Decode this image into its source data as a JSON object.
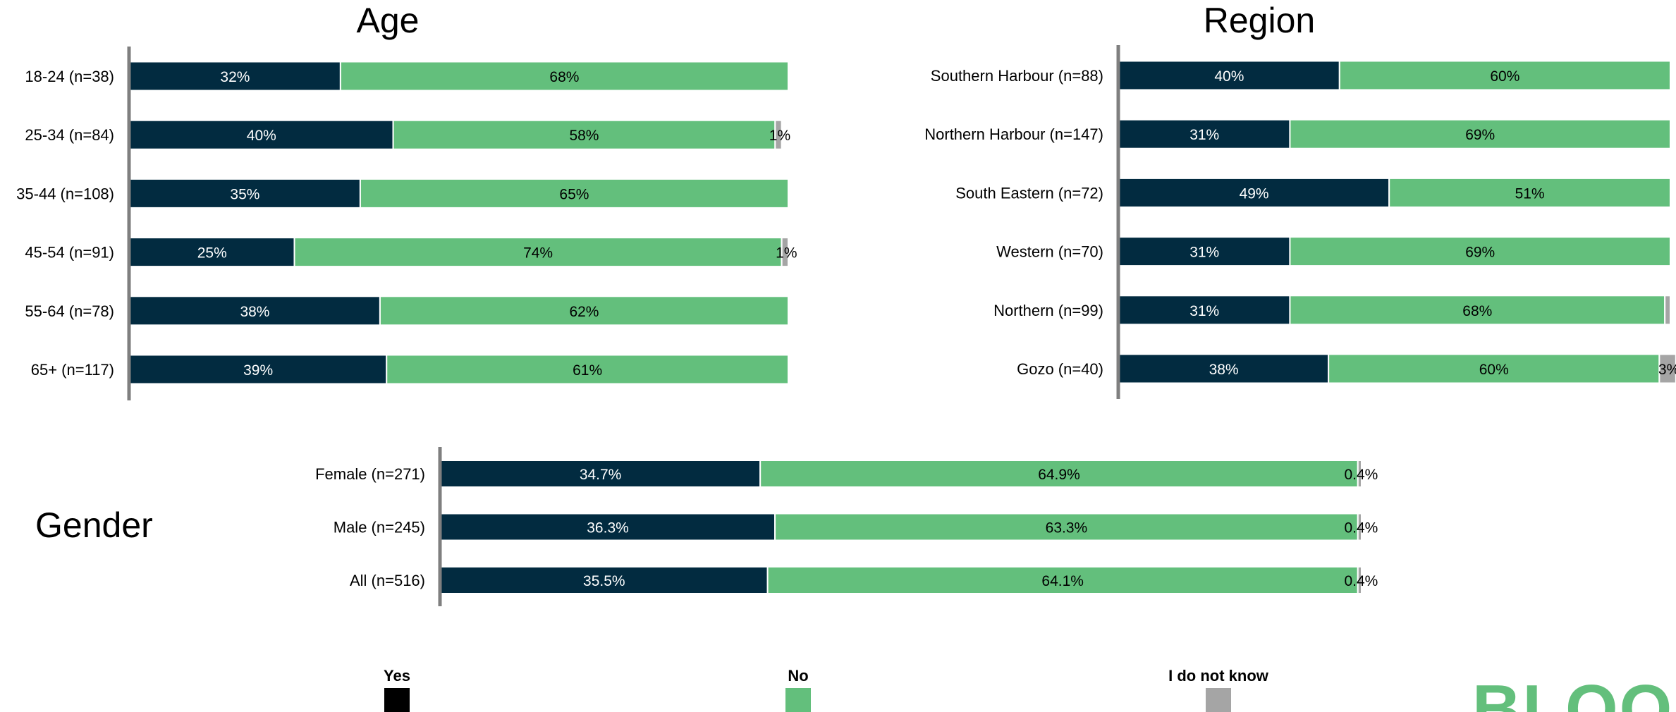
{
  "colors": {
    "yes": "#022b40",
    "no": "#63bf7c",
    "dont_know": "#a5a5a5",
    "axis": "#7f7f7f",
    "logo": "#63bf7c"
  },
  "chart_data": [
    {
      "type": "bar",
      "orientation": "horizontal",
      "stacked": true,
      "percent_stacked": true,
      "title": "Age",
      "categories": [
        "18-24   (n=38)",
        "25-34   (n=84)",
        "35-44   (n=108)",
        "45-54   (n=91)",
        "55-64   (n=78)",
        "65+   (n=117)"
      ],
      "series": [
        {
          "name": "Yes",
          "values": [
            32,
            40,
            35,
            25,
            38,
            39
          ],
          "labels": [
            "32%",
            "40%",
            "35%",
            "25%",
            "38%",
            "39%"
          ]
        },
        {
          "name": "No",
          "values": [
            68,
            58,
            65,
            74,
            62,
            61
          ],
          "labels": [
            "68%",
            "58%",
            "65%",
            "74%",
            "62%",
            "61%"
          ]
        },
        {
          "name": "I do not know",
          "values": [
            0,
            1,
            0,
            1,
            0,
            0
          ],
          "labels": [
            "",
            "1%",
            "",
            "1%",
            "",
            ""
          ]
        }
      ],
      "xlim": [
        0,
        100
      ]
    },
    {
      "type": "bar",
      "orientation": "horizontal",
      "stacked": true,
      "percent_stacked": true,
      "title": "Region",
      "categories": [
        "Southern Harbour   (n=88)",
        "Northern Harbour   (n=147)",
        "South Eastern   (n=72)",
        "Western   (n=70)",
        "Northern   (n=99)",
        "Gozo   (n=40)"
      ],
      "series": [
        {
          "name": "Yes",
          "values": [
            40,
            31,
            49,
            31,
            31,
            38
          ],
          "labels": [
            "40%",
            "31%",
            "49%",
            "31%",
            "31%",
            "38%"
          ]
        },
        {
          "name": "No",
          "values": [
            60,
            69,
            51,
            69,
            68,
            60
          ],
          "labels": [
            "60%",
            "69%",
            "51%",
            "69%",
            "68%",
            "60%"
          ]
        },
        {
          "name": "I do not know",
          "values": [
            0,
            0,
            0,
            0,
            1,
            3
          ],
          "labels": [
            "",
            "",
            "",
            "",
            "",
            "3%"
          ]
        }
      ],
      "xlim": [
        0,
        100
      ]
    },
    {
      "type": "bar",
      "orientation": "horizontal",
      "stacked": true,
      "percent_stacked": true,
      "title": "Gender",
      "categories": [
        "Female   (n=271)",
        "Male   (n=245)",
        "All   (n=516)"
      ],
      "series": [
        {
          "name": "Yes",
          "values": [
            34.7,
            36.3,
            35.5
          ],
          "labels": [
            "34.7%",
            "36.3%",
            "35.5%"
          ]
        },
        {
          "name": "No",
          "values": [
            64.9,
            63.3,
            64.1
          ],
          "labels": [
            "64.9%",
            "63.3%",
            "64.1%"
          ]
        },
        {
          "name": "I do not know",
          "values": [
            0.4,
            0.4,
            0.4
          ],
          "labels": [
            "0.4%",
            "0.4%",
            "0.4%"
          ]
        }
      ],
      "xlim": [
        0,
        100
      ]
    }
  ],
  "legend": {
    "placement": "bottom",
    "items": [
      {
        "label": "Yes",
        "color": "#000000"
      },
      {
        "label": "No",
        "color": "#63bf7c"
      },
      {
        "label": "I do not know",
        "color": "#a5a5a5"
      }
    ]
  },
  "logo": {
    "text": "BLOOM"
  }
}
